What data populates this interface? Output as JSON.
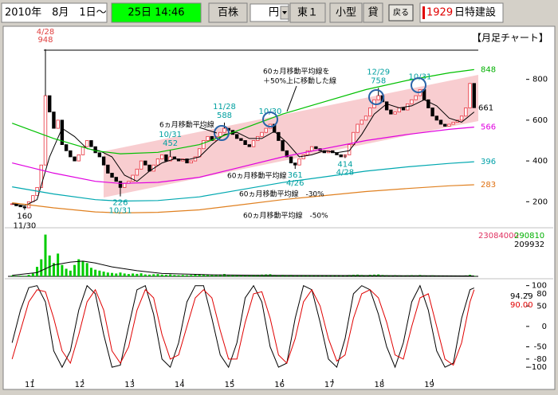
{
  "toolbar": {
    "date_from": "2010年　8月　1日～",
    "date_to": "25日 14:46",
    "unit": "百株",
    "price_unit": "円",
    "market": "東１",
    "size": "小型",
    "lending": "貸",
    "back_button": "戻る",
    "code": "1929",
    "name": "日特建設"
  },
  "chart_data": [
    {
      "type": "candlestick",
      "title": "【月足チャート】",
      "xlim": [
        -1,
        112
      ],
      "xticks": [
        {
          "value": 5,
          "label": "11"
        },
        {
          "value": 17,
          "label": "12"
        },
        {
          "value": 29,
          "label": "13"
        },
        {
          "value": 41,
          "label": "14"
        },
        {
          "value": 53,
          "label": "15"
        },
        {
          "value": 65,
          "label": "16"
        },
        {
          "value": 77,
          "label": "17"
        },
        {
          "value": 89,
          "label": "18"
        },
        {
          "value": 101,
          "label": "19"
        }
      ],
      "ylim": [
        84,
        1033
      ],
      "yticks": [
        200,
        400,
        600,
        800
      ],
      "up_color": "#e8303c",
      "down_color": "#000000",
      "close": [
        190,
        180,
        175,
        170,
        200,
        230,
        270,
        380,
        720,
        640,
        560,
        600,
        480,
        450,
        420,
        400,
        430,
        470,
        500,
        470,
        440,
        420,
        380,
        340,
        320,
        300,
        270,
        290,
        300,
        330,
        360,
        400,
        380,
        350,
        380,
        410,
        430,
        400,
        420,
        410,
        400,
        410,
        390,
        400,
        420,
        460,
        500,
        520,
        500,
        520,
        540,
        560,
        550,
        530,
        510,
        500,
        480,
        470,
        500,
        520,
        540,
        560,
        580,
        540,
        500,
        450,
        420,
        390,
        380,
        410,
        430,
        450,
        470,
        460,
        450,
        440,
        450,
        440,
        430,
        420,
        430,
        480,
        540,
        580,
        600,
        620,
        660,
        700,
        720,
        690,
        650,
        630,
        640,
        660,
        650,
        680,
        700,
        720,
        750,
        700,
        660,
        620,
        600,
        580,
        570,
        580,
        590,
        600,
        620,
        660,
        780,
        661
      ],
      "series": [
        {
          "label_lines": [
            "6ヵ月移動平均線"
          ],
          "color": "#000000",
          "x": [
            0,
            3,
            6,
            9,
            12,
            15,
            18,
            21,
            24,
            27,
            30,
            33,
            36,
            39,
            42,
            45,
            48,
            51,
            54,
            57,
            60,
            63,
            66,
            69,
            72,
            75,
            78,
            81,
            84,
            87,
            90,
            93,
            96,
            99,
            102,
            105,
            108,
            111
          ],
          "values": [
            190,
            180,
            210,
            420,
            560,
            520,
            460,
            450,
            420,
            330,
            300,
            350,
            390,
            410,
            405,
            420,
            480,
            530,
            540,
            510,
            510,
            545,
            490,
            420,
            430,
            450,
            440,
            450,
            530,
            630,
            680,
            660,
            670,
            700,
            670,
            610,
            590,
            640
          ]
        },
        {
          "label_lines": [
            "60ヵ月移動平均線"
          ],
          "color": "#e000e0",
          "x": [
            0,
            10,
            20,
            26,
            35,
            45,
            55,
            65,
            75,
            85,
            95,
            105,
            111
          ],
          "values": [
            390,
            340,
            300,
            290,
            295,
            320,
            370,
            420,
            460,
            500,
            530,
            555,
            566
          ]
        },
        {
          "label_lines": [
            "60ヵ月移動平均線を",
            "＋50%上に移動した線"
          ],
          "color": "#00c000",
          "x": [
            0,
            10,
            20,
            26,
            35,
            45,
            55,
            65,
            75,
            85,
            95,
            105,
            111
          ],
          "values": [
            585,
            510,
            450,
            435,
            442,
            480,
            555,
            630,
            690,
            750,
            795,
            832,
            848
          ]
        },
        {
          "label_lines": [
            "60ヵ月移動平均線　-30%"
          ],
          "color": "#00a8b0",
          "x": [
            0,
            10,
            20,
            26,
            35,
            45,
            55,
            65,
            75,
            85,
            95,
            105,
            111
          ],
          "values": [
            273,
            238,
            210,
            203,
            206,
            224,
            259,
            294,
            322,
            350,
            371,
            388,
            396
          ]
        },
        {
          "label_lines": [
            "60ヵ月移動平均線　-50%"
          ],
          "color": "#e08020",
          "x": [
            0,
            10,
            20,
            26,
            35,
            45,
            55,
            65,
            75,
            85,
            95,
            105,
            111
          ],
          "values": [
            195,
            170,
            150,
            145,
            148,
            160,
            185,
            210,
            230,
            250,
            265,
            278,
            283
          ]
        }
      ],
      "points": [
        {
          "date": "4/28",
          "value": 948,
          "x": 8
        },
        {
          "date": "11/30",
          "value": 160,
          "x": 3
        },
        {
          "date": "10/31",
          "value": 226,
          "x": 26
        },
        {
          "date": "10/31",
          "value": 452,
          "x": 38
        },
        {
          "date": "11/28",
          "value": 588,
          "x": 51
        },
        {
          "date": "10/30",
          "x": 62
        },
        {
          "date": "4/26",
          "value": 361,
          "x": 68
        },
        {
          "date": "4/28",
          "value": 414,
          "x": 80
        },
        {
          "date": "12/29",
          "value": 758,
          "x": 88
        },
        {
          "date": "10/31",
          "x": 98
        }
      ]
    },
    {
      "type": "bar",
      "xlim": [
        -1,
        112
      ],
      "ylim": [
        0,
        23084000
      ],
      "color": "#00cc00",
      "values": [
        400000,
        300000,
        350000,
        300000,
        800000,
        1500000,
        5000000,
        9000000,
        22000000,
        11000000,
        7000000,
        12000000,
        6000000,
        4000000,
        3000000,
        6000000,
        9000000,
        8000000,
        7000000,
        4500000,
        3500000,
        3000000,
        2500000,
        2000000,
        1800000,
        1500000,
        2000000,
        1500000,
        1200000,
        1500000,
        1300000,
        1600000,
        1000000,
        900000,
        1100000,
        1200000,
        900000,
        800000,
        1000000,
        700000,
        600000,
        700000,
        600000,
        700000,
        900000,
        1100000,
        1000000,
        900000,
        700000,
        800000,
        900000,
        1200000,
        800000,
        700000,
        600000,
        500000,
        600000,
        500000,
        700000,
        800000,
        900000,
        1000000,
        1100000,
        700000,
        600000,
        700000,
        600000,
        700000,
        500000,
        600000,
        500000,
        600000,
        500000,
        400000,
        500000,
        400000,
        500000,
        400000,
        500000,
        400000,
        500000,
        700000,
        800000,
        900000,
        700000,
        600000,
        800000,
        900000,
        1000000,
        700000,
        600000,
        500000,
        600000,
        500000,
        400000,
        500000,
        600000,
        500000,
        700000,
        500000,
        400000,
        500000,
        400000,
        300000,
        400000,
        300000,
        400000,
        300000,
        400000,
        500000,
        800000,
        290810
      ],
      "series": [
        {
          "color": "#000000",
          "x": [
            0,
            6,
            10,
            14,
            17,
            20,
            24,
            30,
            36,
            48,
            60,
            80,
            100,
            111
          ],
          "values": [
            500000,
            2000000,
            6000000,
            7500000,
            8000000,
            7000000,
            5000000,
            3000000,
            1500000,
            800000,
            500000,
            400000,
            300000,
            209932
          ]
        }
      ]
    },
    {
      "type": "line",
      "xlim": [
        -1,
        112
      ],
      "ylim": [
        -133,
        113
      ],
      "yticks": [
        100,
        80,
        50,
        0,
        -50,
        -80,
        -100
      ],
      "series": [
        {
          "color": "#000000",
          "x": [
            0,
            2,
            4,
            6,
            8,
            10,
            12,
            14,
            16,
            18,
            20,
            22,
            24,
            26,
            28,
            30,
            32,
            34,
            36,
            38,
            40,
            42,
            44,
            46,
            48,
            50,
            52,
            54,
            56,
            58,
            60,
            62,
            64,
            66,
            68,
            70,
            72,
            74,
            76,
            78,
            80,
            82,
            84,
            86,
            88,
            90,
            92,
            94,
            96,
            98,
            100,
            102,
            104,
            106,
            108,
            110,
            111
          ],
          "values": [
            -40,
            40,
            95,
            100,
            60,
            -60,
            -100,
            -60,
            40,
            100,
            80,
            -20,
            -100,
            -95,
            0,
            90,
            100,
            30,
            -80,
            -100,
            -40,
            60,
            100,
            100,
            20,
            -70,
            -100,
            -40,
            70,
            100,
            60,
            -50,
            -100,
            -90,
            20,
            100,
            90,
            10,
            -80,
            -100,
            -30,
            80,
            100,
            90,
            30,
            -50,
            -100,
            -40,
            60,
            100,
            40,
            -60,
            -100,
            -90,
            20,
            90,
            94.29
          ]
        },
        {
          "color": "#e00000",
          "x": [
            0,
            2,
            4,
            6,
            8,
            10,
            12,
            14,
            16,
            18,
            20,
            22,
            24,
            26,
            28,
            30,
            32,
            34,
            36,
            38,
            40,
            42,
            44,
            46,
            48,
            50,
            52,
            54,
            56,
            58,
            60,
            62,
            64,
            66,
            68,
            70,
            72,
            74,
            76,
            78,
            80,
            82,
            84,
            86,
            88,
            90,
            92,
            94,
            96,
            98,
            100,
            102,
            104,
            106,
            108,
            110,
            111
          ],
          "values": [
            -80,
            -10,
            60,
            90,
            85,
            20,
            -60,
            -90,
            -20,
            60,
            90,
            40,
            -60,
            -90,
            -50,
            40,
            90,
            70,
            -20,
            -80,
            -70,
            0,
            70,
            90,
            70,
            -10,
            -80,
            -80,
            10,
            80,
            85,
            20,
            -70,
            -90,
            -30,
            60,
            90,
            50,
            -30,
            -85,
            -70,
            20,
            80,
            90,
            70,
            10,
            -70,
            -80,
            0,
            70,
            80,
            0,
            -80,
            -95,
            -40,
            60,
            90
          ],
          "value_labels": [
            null,
            null,
            null,
            null,
            null,
            null,
            null,
            null,
            null,
            null,
            null,
            null,
            null,
            null,
            null,
            null,
            null,
            null,
            null,
            null,
            null,
            null,
            null,
            null,
            null,
            null,
            null,
            null,
            null,
            null,
            null,
            null,
            null,
            null,
            null,
            null,
            null,
            null,
            null,
            null,
            null,
            null,
            null,
            null,
            null,
            null,
            null,
            null,
            null,
            null,
            null,
            null,
            null,
            null,
            null,
            null,
            "90.00"
          ]
        }
      ]
    }
  ]
}
